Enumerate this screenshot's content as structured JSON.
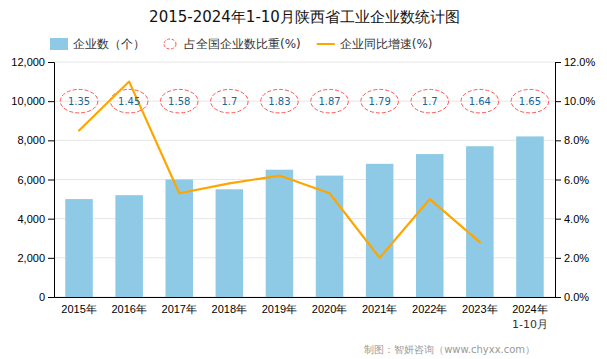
{
  "chart_data": {
    "type": "bar",
    "title": "2015-2024年1-10月陕西省工业企业数统计图",
    "categories": [
      "2015年",
      "2016年",
      "2017年",
      "2018年",
      "2019年",
      "2020年",
      "2021年",
      "2022年",
      "2023年",
      "2024年"
    ],
    "series": [
      {
        "name": "企业数（个）",
        "type": "bar",
        "color": "#8ECAE6",
        "values": [
          5000,
          5200,
          6000,
          5500,
          6500,
          6200,
          6800,
          7300,
          7700,
          8200
        ]
      },
      {
        "name": "占全国企业数比重(%)",
        "type": "label",
        "marker": "ellipse",
        "line_style": "dashed",
        "color": "#FF5555",
        "data_labels": true,
        "values": [
          1.35,
          1.45,
          1.58,
          1.7,
          1.83,
          1.87,
          1.79,
          1.7,
          1.64,
          1.65
        ]
      },
      {
        "name": "企业同比增速(%)",
        "type": "line",
        "axis": "y2",
        "color": "#FFA500",
        "values": [
          8.5,
          11.0,
          5.3,
          5.8,
          6.2,
          5.3,
          2.0,
          5.0,
          2.8,
          null
        ]
      }
    ],
    "ylim": [
      0,
      12000
    ],
    "yticks": [
      0,
      {
        "value": 2000,
        "label": "2,000"
      },
      {
        "value": 4000,
        "label": "4,000"
      },
      {
        "value": 6000,
        "label": "6,000"
      },
      {
        "value": 8000,
        "label": "8,000"
      },
      {
        "value": 10000,
        "label": "10,000"
      },
      {
        "value": 12000,
        "label": "12,000"
      }
    ],
    "y2lim": [
      0,
      12.0
    ],
    "y2ticks": [
      {
        "value": 0.0,
        "label": "0.0%"
      },
      {
        "value": 2.0,
        "label": "2.0%"
      },
      {
        "value": 4.0,
        "label": "4.0%"
      },
      {
        "value": 6.0,
        "label": "6.0%"
      },
      {
        "value": 8.0,
        "label": "8.0%"
      },
      {
        "value": 10.0,
        "label": "10.0%"
      },
      {
        "value": 12.0,
        "label": "12.0%"
      }
    ],
    "grid": true,
    "legend": "top",
    "annotations": [
      {
        "text": "1-10月",
        "x": "2024年"
      },
      {
        "text": "制图：智妍咨询（www.chyxx.com）"
      }
    ]
  }
}
